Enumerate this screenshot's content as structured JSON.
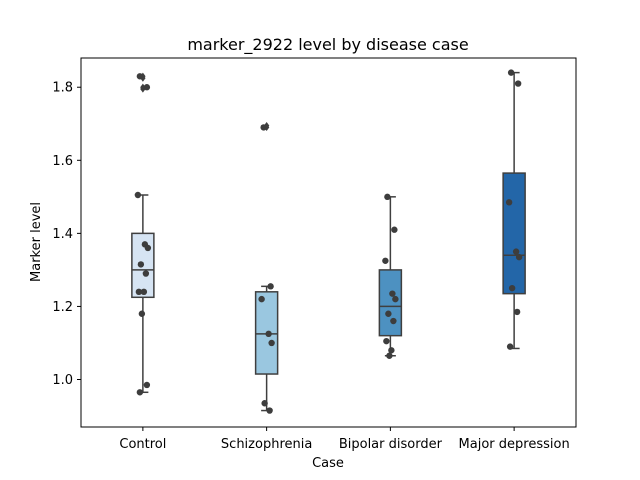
{
  "chart_data": {
    "type": "box",
    "title": "marker_2922 level by disease case",
    "xlabel": "Case",
    "ylabel": "Marker level",
    "ylim": [
      0.87,
      1.88
    ],
    "yticks": [
      1.0,
      1.2,
      1.4,
      1.6,
      1.8
    ],
    "ytick_labels": [
      "1.0",
      "1.2",
      "1.4",
      "1.6",
      "1.8"
    ],
    "grid": false,
    "categories": [
      "Control",
      "Schizophrenia",
      "Bipolar disorder",
      "Major depression"
    ],
    "colors": [
      "#d6e4f3",
      "#9ac7e0",
      "#4d91c1",
      "#2366a8"
    ],
    "boxes": [
      {
        "name": "Control",
        "whisker_low": 0.965,
        "q1": 1.225,
        "median": 1.3,
        "q3": 1.4,
        "whisker_high": 1.505,
        "outliers": [
          1.795,
          1.8,
          1.825,
          1.83
        ]
      },
      {
        "name": "Schizophrenia",
        "whisker_low": 0.915,
        "q1": 1.015,
        "median": 1.125,
        "q3": 1.24,
        "whisker_high": 1.255,
        "outliers": [
          1.69,
          1.695
        ]
      },
      {
        "name": "Bipolar disorder",
        "whisker_low": 1.065,
        "q1": 1.12,
        "median": 1.2,
        "q3": 1.3,
        "whisker_high": 1.5,
        "outliers": []
      },
      {
        "name": "Major depression",
        "whisker_low": 1.085,
        "q1": 1.235,
        "median": 1.34,
        "q3": 1.565,
        "whisker_high": 1.84,
        "outliers": []
      }
    ],
    "points": [
      {
        "category": "Control",
        "values": [
          1.83,
          1.8,
          1.505,
          1.37,
          1.36,
          1.315,
          1.29,
          1.24,
          1.24,
          1.18,
          0.985,
          0.965
        ]
      },
      {
        "category": "Schizophrenia",
        "values": [
          1.69,
          1.255,
          1.22,
          1.125,
          1.1,
          0.935,
          0.915
        ]
      },
      {
        "category": "Bipolar disorder",
        "values": [
          1.5,
          1.41,
          1.325,
          1.235,
          1.22,
          1.18,
          1.16,
          1.105,
          1.08,
          1.065
        ]
      },
      {
        "category": "Major depression",
        "values": [
          1.84,
          1.81,
          1.485,
          1.35,
          1.335,
          1.25,
          1.185,
          1.09
        ]
      }
    ]
  }
}
